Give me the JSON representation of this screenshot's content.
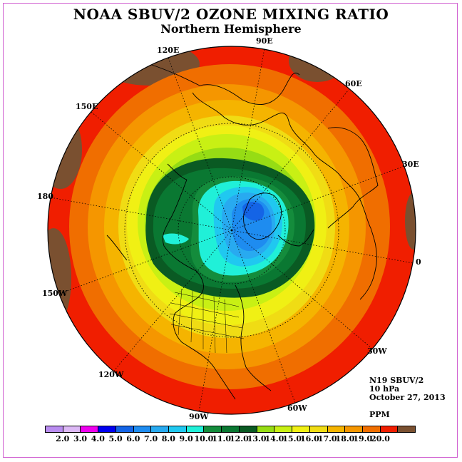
{
  "title": "NOAA SBUV/2 OZONE MIXING RATIO",
  "subtitle": "Northern Hemisphere",
  "longitude_labels": {
    "lon_90E": "90E",
    "lon_120E": "120E",
    "lon_60E": "60E",
    "lon_150E": "150E",
    "lon_30E": "30E",
    "lon_180": "180",
    "lon_0": "0",
    "lon_150W": "150W",
    "lon_30W": "30W",
    "lon_120W": "120W",
    "lon_60W": "60W",
    "lon_90W": "90W"
  },
  "info": {
    "instrument": "N19 SBUV/2",
    "level": "10 hPa",
    "date": "October 27, 2013",
    "units": "PPM"
  },
  "colorbar": {
    "labels": [
      "2.0",
      "3.0",
      "4.0",
      "5.0",
      "6.0",
      "7.0",
      "8.0",
      "9.0",
      "10.0",
      "11.0",
      "12.0",
      "13.0",
      "14.0",
      "15.0",
      "16.0",
      "17.0",
      "18.0",
      "19.0",
      "20.0"
    ],
    "colors": [
      "#b98cf0",
      "#dcb8f5",
      "#ee00ee",
      "#0000f0",
      "#1464e6",
      "#1e8cf0",
      "#28aaf0",
      "#20c8f0",
      "#20f0d8",
      "#148c3c",
      "#0a7832",
      "#0a5a23",
      "#96dc14",
      "#c8f014",
      "#f0f014",
      "#f0dc14",
      "#f5b400",
      "#f59600",
      "#f06e00",
      "#f01e00",
      "#7a5030"
    ]
  },
  "map_colors": {
    "dark_brown": "#7a5030",
    "red": "#f01e00",
    "red_orange": "#f06e00",
    "orange": "#f59600",
    "light_orange": "#f5b400",
    "gold": "#f0dc14",
    "yellow": "#f0f014",
    "yellow_green": "#c8f014",
    "lime": "#96dc14",
    "dark_green": "#0a5a23",
    "green": "#0a7832",
    "mid_green": "#148c3c",
    "turquoise": "#20f0d8",
    "cyan": "#20c8f0",
    "light_blue": "#28aaf0",
    "blue": "#1e8cf0",
    "deep_blue": "#1464e6"
  }
}
